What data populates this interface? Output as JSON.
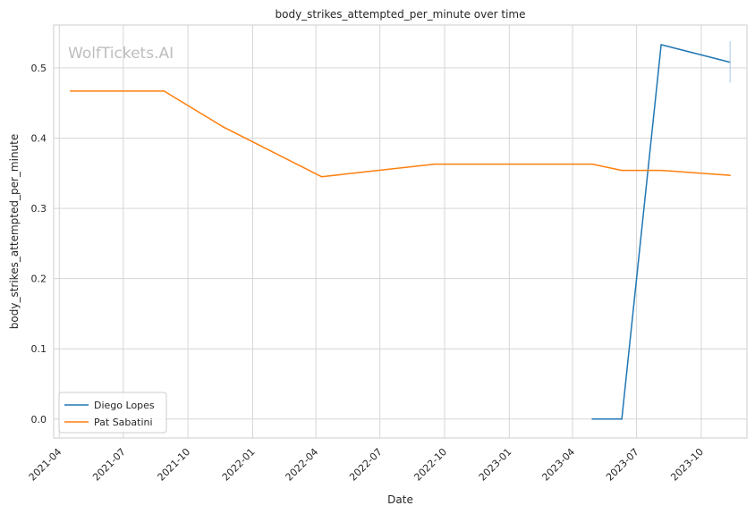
{
  "watermark": "WolfTickets.AI",
  "chart_data": {
    "type": "line",
    "title": "body_strikes_attempted_per_minute over time",
    "xlabel": "Date",
    "ylabel": "body_strikes_attempted_per_minute",
    "x_tick_labels": [
      "2021-04",
      "2021-07",
      "2021-10",
      "2022-01",
      "2022-04",
      "2022-07",
      "2022-10",
      "2023-01",
      "2023-04",
      "2023-07",
      "2023-10"
    ],
    "y_ticks": [
      0.0,
      0.1,
      0.2,
      0.3,
      0.4,
      0.5
    ],
    "y_tick_labels": [
      "0.0",
      "0.1",
      "0.2",
      "0.3",
      "0.4",
      "0.5"
    ],
    "ylim": [
      -0.027,
      0.561
    ],
    "xlim": [
      "2021-03-24",
      "2023-12-05"
    ],
    "grid": true,
    "legend_position": "lower-left",
    "series": [
      {
        "name": "Diego Lopes",
        "color": "#1f77b4",
        "x": [
          "2023-04-29",
          "2023-06-10",
          "2023-08-05",
          "2023-11-11"
        ],
        "y": [
          0.0,
          0.0,
          0.533,
          0.508
        ]
      },
      {
        "name": "Pat Sabatini",
        "color": "#ff7f0e",
        "x": [
          "2021-04-17",
          "2021-08-28",
          "2021-11-20",
          "2022-04-09",
          "2022-09-17",
          "2023-04-29",
          "2023-06-10",
          "2023-08-05",
          "2023-11-11"
        ],
        "y": [
          0.467,
          0.467,
          0.416,
          0.345,
          0.363,
          0.363,
          0.354,
          0.354,
          0.347
        ]
      }
    ]
  }
}
